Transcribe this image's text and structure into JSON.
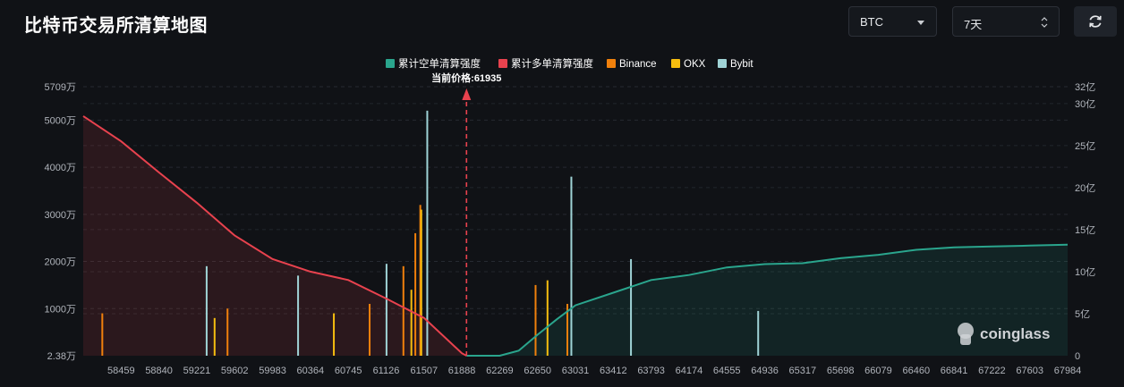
{
  "header": {
    "title": "比特币交易所清算地图",
    "coin_value": "BTC",
    "period_value": "7天"
  },
  "colors": {
    "short_cumulative": "#2aa58d",
    "long_cumulative": "#e8424e",
    "binance": "#f0800c",
    "okx": "#f5bd0f",
    "bybit": "#9fd3d6",
    "background": "#101216"
  },
  "icons": {
    "coin_dropdown": "caret-down-icon",
    "period_dropdown": "updown-arrows-icon",
    "refresh": "refresh-icon",
    "watermark": "coinglass-logo-icon"
  },
  "watermark": "coinglass",
  "chart_data": {
    "type": "bar",
    "legend": [
      "累计空单清算强度",
      "累计多单清算强度",
      "Binance",
      "OKX",
      "Bybit"
    ],
    "legend_position": "top-center",
    "current_price_label": "当前价格:61935",
    "current_price": 61935,
    "x_tick_labels": [
      "58459",
      "58840",
      "59221",
      "59602",
      "59983",
      "60364",
      "60745",
      "61126",
      "61507",
      "61888",
      "62269",
      "62650",
      "63031",
      "63412",
      "63793",
      "64174",
      "64555",
      "64936",
      "65317",
      "65698",
      "66079",
      "66460",
      "66841",
      "67222",
      "67603",
      "67984"
    ],
    "x_range": [
      58078,
      67984
    ],
    "y_left_tick_labels": [
      "2.38万",
      "1000万",
      "2000万",
      "3000万",
      "4000万",
      "5000万",
      "5709万"
    ],
    "y_left_range": [
      0,
      57090000
    ],
    "y_right_tick_labels": [
      "0",
      "5亿",
      "10亿",
      "15亿",
      "20亿",
      "25亿",
      "30亿",
      "32亿"
    ],
    "y_right_range": [
      0,
      3200000000
    ],
    "grid": true,
    "series": [
      {
        "name": "累计多单清算强度",
        "axis": "right",
        "x": [
          58078,
          58459,
          58840,
          59221,
          59602,
          59983,
          60364,
          60745,
          61126,
          61507,
          61888,
          61935
        ],
        "y": [
          2850000000,
          2550000000,
          2180000000,
          1820000000,
          1430000000,
          1150000000,
          1000000000,
          900000000,
          680000000,
          450000000,
          30000000,
          0
        ]
      },
      {
        "name": "累计空单清算强度",
        "axis": "right",
        "x": [
          61935,
          62269,
          62460,
          62650,
          62840,
          63031,
          63412,
          63793,
          64174,
          64555,
          64936,
          65317,
          65698,
          66079,
          66460,
          66841,
          67222,
          67603,
          67984
        ],
        "y": [
          0,
          0,
          60000000,
          250000000,
          430000000,
          600000000,
          750000000,
          900000000,
          960000000,
          1050000000,
          1090000000,
          1100000000,
          1160000000,
          1200000000,
          1260000000,
          1290000000,
          1300000000,
          1310000000,
          1320000000
        ]
      },
      {
        "name": "Binance",
        "axis": "left",
        "x": [
          58270,
          59530,
          60960,
          61300,
          61420,
          61470,
          62630,
          62950
        ],
        "y": [
          9000000,
          10000000,
          11000000,
          19000000,
          26000000,
          32000000,
          15000000,
          11000000
        ]
      },
      {
        "name": "OKX",
        "axis": "left",
        "x": [
          59400,
          60600,
          61380,
          61480,
          62750
        ],
        "y": [
          8000000,
          9000000,
          14000000,
          31000000,
          16000000
        ]
      },
      {
        "name": "Bybit",
        "axis": "left",
        "x": [
          59320,
          60240,
          61130,
          61540,
          62990,
          63590,
          64870
        ],
        "y": [
          19000000,
          17000000,
          19500000,
          52000000,
          38000000,
          20500000,
          9500000
        ]
      }
    ]
  }
}
